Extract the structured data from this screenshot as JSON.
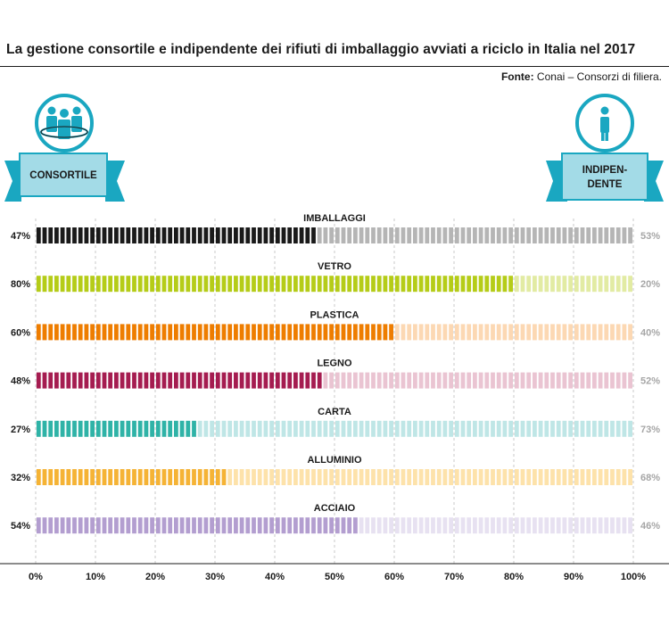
{
  "header": {
    "title": "La gestione consortile e indipendente dei rifiuti di imballaggio avviati a riciclo in Italia nel 2017",
    "source_label": "Fonte:",
    "source_text": " Conai – Consorzi di filiera."
  },
  "badges": {
    "left_label": "CONSORTILE",
    "left_icon": "group-people-icon",
    "right_label_line1": "INDIPEN-",
    "right_label_line2": "DENTE",
    "right_icon": "single-person-icon",
    "accent": "#1aa7c1",
    "ribbon": "#1aa7c1",
    "label_bg": "#a3dbe7"
  },
  "chart_data": {
    "type": "bar",
    "subtype": "stacked-horizontal-100",
    "series": [
      {
        "name": "CONSORTILE",
        "values": [
          47,
          80,
          60,
          48,
          27,
          32,
          54
        ]
      },
      {
        "name": "INDIPENDENTE",
        "values": [
          53,
          20,
          40,
          52,
          73,
          68,
          46
        ]
      }
    ],
    "categories": [
      "IMBALLAGGI",
      "VETRO",
      "PLASTICA",
      "LEGNO",
      "CARTA",
      "ALLUMINIO",
      "ACCIAIO"
    ],
    "left_labels": [
      "47%",
      "80%",
      "60%",
      "48%",
      "27%",
      "32%",
      "54%"
    ],
    "right_labels": [
      "53%",
      "20%",
      "40%",
      "52%",
      "73%",
      "68%",
      "46%"
    ],
    "colors_dark": [
      "#1a1a1a",
      "#b5cc18",
      "#ee7d00",
      "#a51c50",
      "#2fb3a7",
      "#f5b335",
      "#b39ed0"
    ],
    "colors_light": [
      "#b5b5b5",
      "#e2eba3",
      "#fcd8b3",
      "#eac4d2",
      "#bfe6e6",
      "#fde2aa",
      "#e7e1f1"
    ],
    "xlim": [
      0,
      100
    ],
    "xticks": [
      "0%",
      "10%",
      "20%",
      "30%",
      "40%",
      "50%",
      "60%",
      "70%",
      "80%",
      "90%",
      "100%"
    ],
    "grid": true
  }
}
